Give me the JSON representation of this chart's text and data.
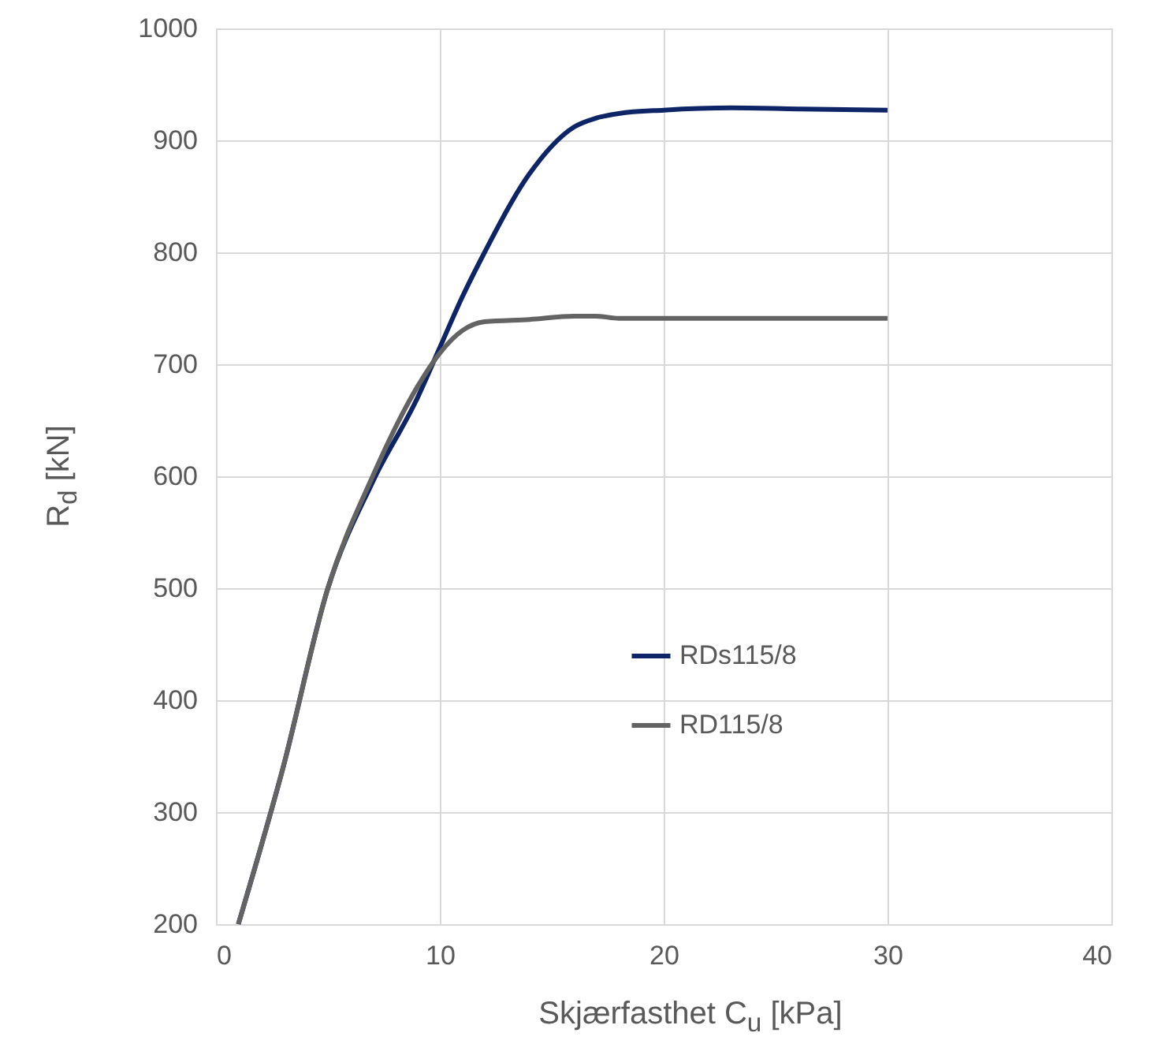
{
  "chart_data": {
    "type": "line",
    "xlabel": "Skjærfasthet C$_{u}$ [kPa]",
    "ylabel": "R$_{d}$ [kN]",
    "x": [
      1,
      3,
      5,
      7,
      9,
      10,
      11,
      12,
      14,
      16,
      17,
      18,
      20,
      23,
      26,
      30
    ],
    "series": [
      {
        "name": "RDs115/8",
        "color": "#0d2466",
        "values": [
          200,
          340,
          500,
          595,
          670,
          715,
          760,
          800,
          870,
          912,
          920,
          924,
          927,
          929,
          928,
          927
        ]
      },
      {
        "name": "RD115/8",
        "color": "#636363",
        "values": [
          200,
          340,
          500,
          600,
          680,
          710,
          730,
          738,
          740,
          743,
          743,
          741,
          741,
          741,
          741,
          741
        ]
      }
    ],
    "xlim": [
      0,
      40
    ],
    "xticks": [
      0,
      10,
      20,
      30,
      40
    ],
    "ylim": [
      200,
      1000
    ],
    "yticks": [
      200,
      300,
      400,
      500,
      600,
      700,
      800,
      900,
      1000
    ],
    "grid": true,
    "legend": "right"
  }
}
